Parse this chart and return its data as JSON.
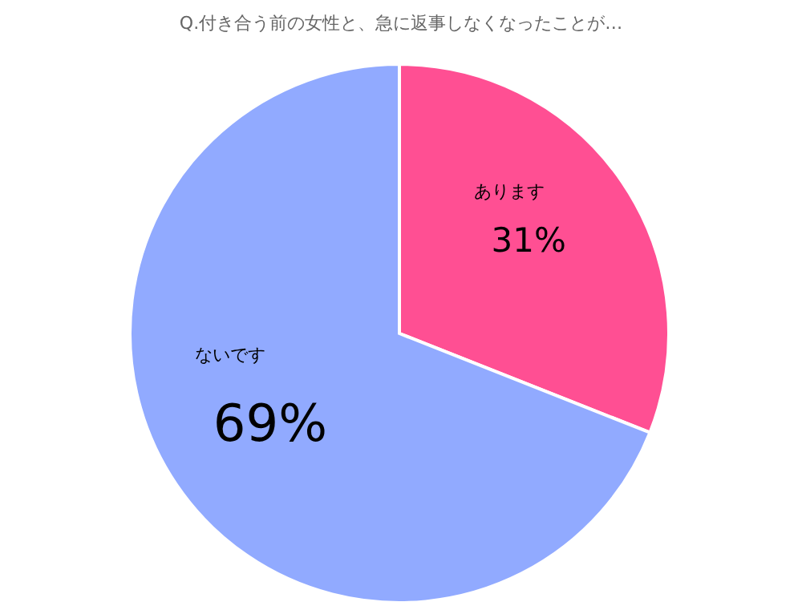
{
  "chart_data": {
    "type": "pie",
    "title": "Q.付き合う前の女性と、急に返事しなくなったことが…",
    "categories": [
      "あります",
      "ないです"
    ],
    "values": [
      31,
      69
    ],
    "colors": [
      "#ff4f93",
      "#91aaff"
    ],
    "value_labels": [
      "31%",
      "69%"
    ],
    "legend": false
  }
}
